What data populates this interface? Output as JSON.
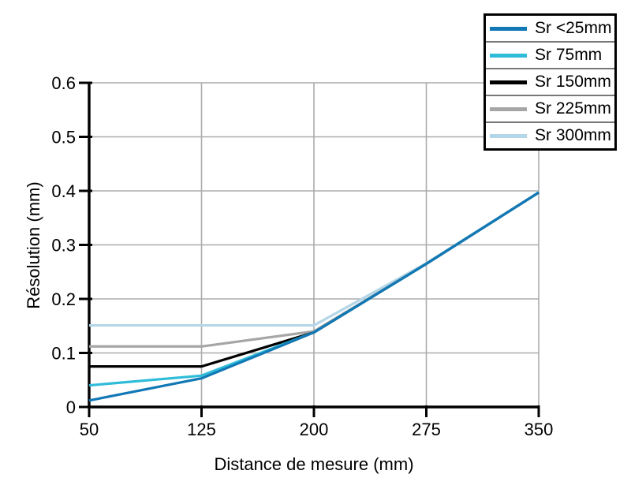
{
  "figure": {
    "background": "#ffffff"
  },
  "chart_data": {
    "type": "line",
    "title": "",
    "xlabel": "Distance de mesure (mm)",
    "ylabel": "Résolution (mm)",
    "xlim": [
      50,
      350
    ],
    "ylim": [
      0,
      0.6
    ],
    "x_ticks": [
      50,
      125,
      200,
      275,
      350
    ],
    "x_tick_labels": [
      "50",
      "125",
      "200",
      "275",
      "350"
    ],
    "y_ticks": [
      0,
      0.1,
      0.2,
      0.3,
      0.4,
      0.5,
      0.6
    ],
    "y_tick_labels": [
      "0",
      "0.1",
      "0.2",
      "0.3",
      "0.4",
      "0.5",
      "0.6"
    ],
    "grid": true,
    "legend_position": "top-right",
    "x": [
      50,
      125,
      200,
      275,
      350
    ],
    "series": [
      {
        "name": "Sr <25mm",
        "color": "#1278b5",
        "values": [
          0.012,
          0.053,
          0.138,
          0.265,
          0.397
        ]
      },
      {
        "name": "Sr 75mm",
        "color": "#2fbcd8",
        "values": [
          0.04,
          0.058,
          0.138,
          0.265,
          0.397
        ]
      },
      {
        "name": "Sr 150mm",
        "color": "#000000",
        "values": [
          0.075,
          0.075,
          0.138,
          0.265,
          0.397
        ]
      },
      {
        "name": "Sr 225mm",
        "color": "#a6a6a6",
        "values": [
          0.112,
          0.112,
          0.14,
          0.265,
          0.397
        ]
      },
      {
        "name": "Sr 300mm",
        "color": "#b3d6e8",
        "values": [
          0.151,
          0.151,
          0.151,
          0.266,
          0.397
        ]
      }
    ],
    "colors": {
      "grid": "#ababab",
      "axis": "#000000",
      "legend_border": "#000000",
      "legend_separator": "#787878"
    }
  }
}
